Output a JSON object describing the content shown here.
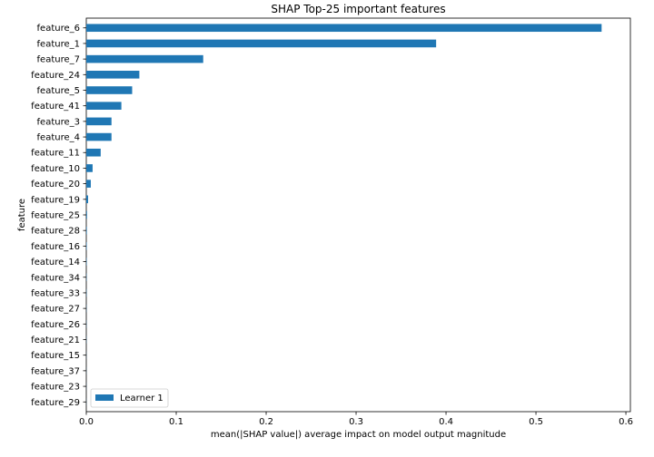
{
  "chart_data": {
    "type": "bar",
    "orientation": "horizontal",
    "title": "SHAP Top-25 important features",
    "xlabel": "mean(|SHAP value|) average impact on model output magnitude",
    "ylabel": "feature",
    "xlim": [
      0,
      0.605
    ],
    "xticks": [
      0,
      0.1,
      0.2,
      0.3,
      0.4,
      0.5,
      0.6
    ],
    "xtick_labels": [
      "0.0",
      "0.1",
      "0.2",
      "0.3",
      "0.4",
      "0.5",
      "0.6"
    ],
    "grid": false,
    "legend_position": "lower-left",
    "bar_color": "#1f77b4",
    "categories": [
      "feature_6",
      "feature_1",
      "feature_7",
      "feature_24",
      "feature_5",
      "feature_41",
      "feature_3",
      "feature_4",
      "feature_11",
      "feature_10",
      "feature_20",
      "feature_19",
      "feature_25",
      "feature_28",
      "feature_16",
      "feature_14",
      "feature_34",
      "feature_33",
      "feature_27",
      "feature_26",
      "feature_21",
      "feature_15",
      "feature_37",
      "feature_23",
      "feature_29"
    ],
    "series": [
      {
        "name": "Learner 1",
        "values": [
          0.573,
          0.389,
          0.13,
          0.059,
          0.051,
          0.039,
          0.028,
          0.028,
          0.016,
          0.007,
          0.005,
          0.002,
          0.0008,
          0.0006,
          0.0005,
          0.0004,
          0.0003,
          0.0003,
          0.0002,
          0.0002,
          0.0002,
          0.0001,
          0.0001,
          0.0001,
          0.0001
        ]
      }
    ]
  }
}
